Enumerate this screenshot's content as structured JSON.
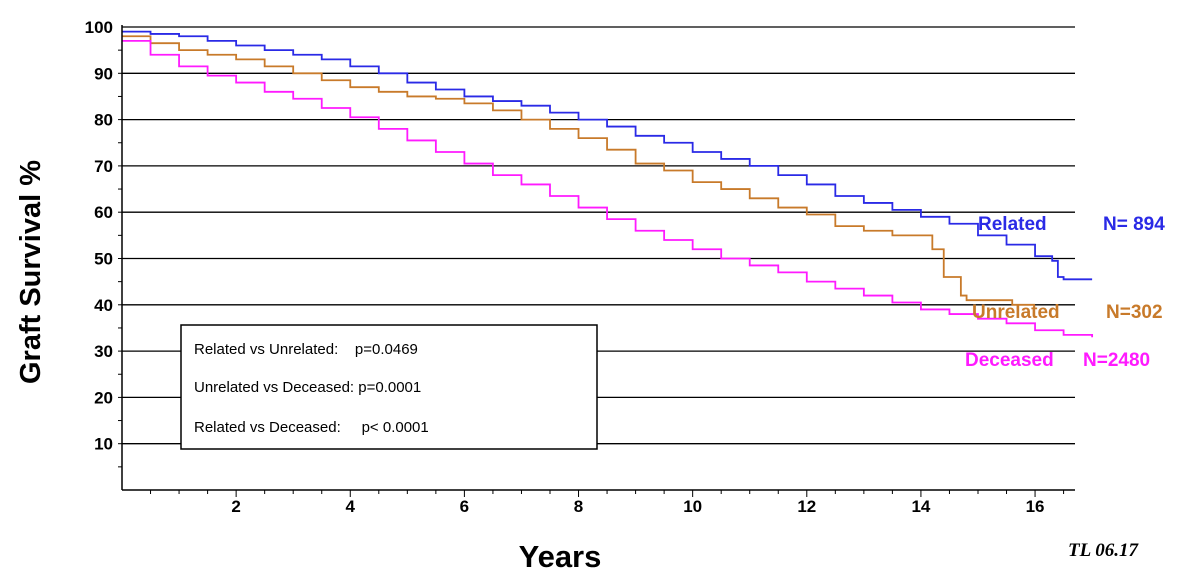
{
  "chart_data": {
    "type": "line",
    "step": true,
    "ylabel": "Graft Survival %",
    "xlabel": "Years",
    "xlim": [
      0,
      16.7
    ],
    "ylim": [
      0,
      100
    ],
    "x_ticks": [
      2,
      4,
      6,
      8,
      10,
      12,
      14,
      16
    ],
    "y_ticks": [
      10,
      20,
      30,
      40,
      50,
      60,
      70,
      80,
      90,
      100
    ],
    "grid": "horizontal",
    "series": [
      {
        "name": "Related",
        "n_label": "N= 894",
        "color": "#2a2ae6",
        "x": [
          0,
          0.5,
          1,
          1.5,
          2,
          2.5,
          3,
          3.5,
          4,
          4.5,
          5,
          5.5,
          6,
          6.5,
          7,
          7.5,
          8,
          8.5,
          9,
          9.5,
          10,
          10.5,
          11,
          11.5,
          12,
          12.5,
          13,
          13.5,
          14,
          14.5,
          15,
          15.5,
          16,
          16.3,
          16.4,
          16.5,
          17.0
        ],
        "y": [
          99,
          98.5,
          98,
          97,
          96,
          95,
          94,
          93,
          91.5,
          90,
          88,
          86.5,
          85,
          84,
          83,
          81.5,
          80,
          78.5,
          76.5,
          75,
          73,
          71.5,
          70,
          68,
          66,
          63.5,
          62,
          60.5,
          59,
          57.5,
          55,
          53,
          50.5,
          49.5,
          46,
          45.5,
          45.5
        ]
      },
      {
        "name": "Unrelated",
        "n_label": "N=302",
        "color": "#c87a2a",
        "x": [
          0,
          0.5,
          1,
          1.5,
          2,
          2.5,
          3,
          3.5,
          4,
          4.5,
          5,
          5.5,
          6,
          6.5,
          7,
          7.5,
          8,
          8.5,
          9,
          9.5,
          10,
          10.5,
          11,
          11.5,
          12,
          12.5,
          13,
          13.5,
          14,
          14.2,
          14.4,
          14.7,
          14.8,
          15.2,
          15.6,
          16.0
        ],
        "y": [
          98,
          96.5,
          95,
          94,
          93,
          91.5,
          90,
          88.5,
          87,
          86,
          85,
          84.5,
          83.5,
          82,
          80,
          78,
          76,
          73.5,
          70.5,
          69,
          66.5,
          65,
          63,
          61,
          59.5,
          57,
          56,
          55,
          55,
          52,
          46,
          42,
          41,
          41,
          40,
          40
        ]
      },
      {
        "name": "Deceased",
        "n_label": "N=2480",
        "color": "#ff1aff",
        "x": [
          0,
          0.5,
          1,
          1.5,
          2,
          2.5,
          3,
          3.5,
          4,
          4.5,
          5,
          5.5,
          6,
          6.5,
          7,
          7.5,
          8,
          8.5,
          9,
          9.5,
          10,
          10.5,
          11,
          11.5,
          12,
          12.5,
          13,
          13.5,
          14,
          14.5,
          15,
          15.5,
          16,
          16.5,
          17.0
        ],
        "y": [
          97,
          94,
          91.5,
          89.5,
          88,
          86,
          84.5,
          82.5,
          80.5,
          78,
          75.5,
          73,
          70.5,
          68,
          66,
          63.5,
          61,
          58.5,
          56,
          54,
          52,
          50,
          48.5,
          47,
          45,
          43.5,
          42,
          40.5,
          39,
          38,
          37,
          36,
          34.5,
          33.5,
          33
        ]
      }
    ],
    "legend_box": {
      "lines": [
        "Related vs Unrelated:    p=0.0469",
        "Unrelated vs Deceased: p=0.0001",
        "Related vs Deceased:     p< 0.0001"
      ]
    },
    "corner_note": "TL 06.17"
  }
}
